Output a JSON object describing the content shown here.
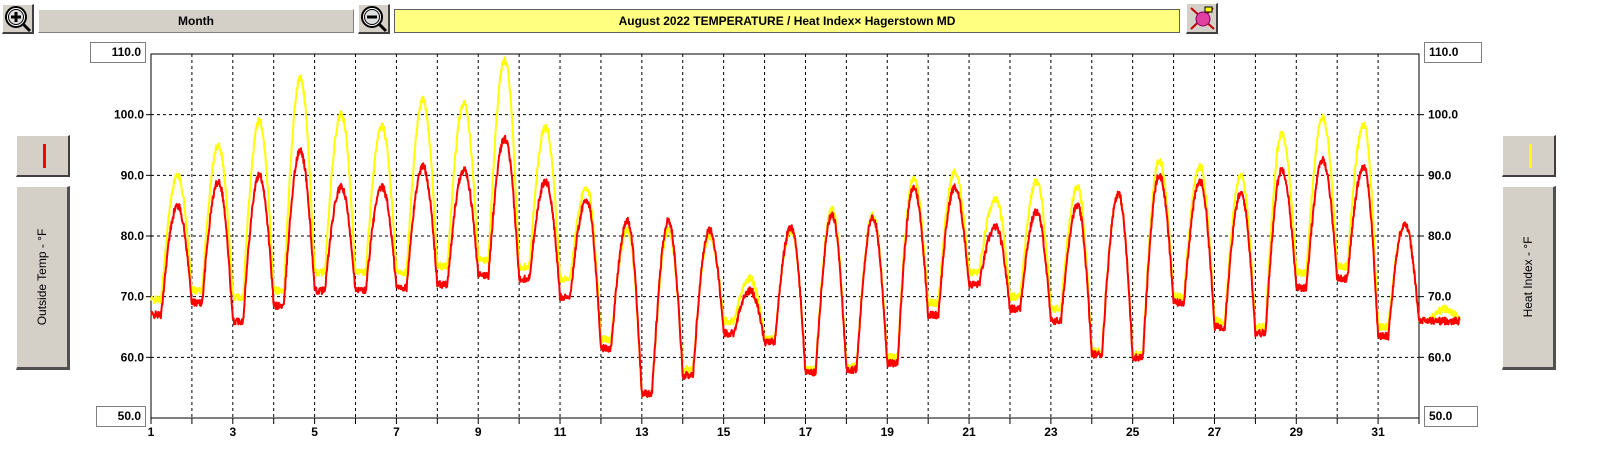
{
  "toolbar": {
    "zoom_in_icon": "zoom-in-magnifier-icon",
    "zoom_out_icon": "zoom-out-magnifier-icon",
    "period_label": "Month",
    "palette_icon": "color-palette-icon"
  },
  "colors": {
    "temp": "#ff0000",
    "heat_index": "#ffff00",
    "title_bg": "#ffff80",
    "grid": "#000000"
  },
  "chart_data": {
    "type": "line",
    "title": "August 2022  TEMPERATURE / Heat Index×  Hagerstown MD",
    "left_axis_label": "Outside Temp - °F",
    "right_axis_label": "Heat Index - °F",
    "ylim": [
      50,
      110
    ],
    "xlim": [
      1,
      32
    ],
    "y_ticks": [
      "60.0",
      "70.0",
      "80.0",
      "90.0",
      "100.0"
    ],
    "y_max_label": "110.0",
    "y_min_label": "50.0",
    "x_ticks": [
      "1",
      "3",
      "5",
      "7",
      "9",
      "11",
      "13",
      "15",
      "17",
      "19",
      "21",
      "23",
      "25",
      "27",
      "29",
      "31"
    ],
    "grid": "dashed",
    "series": [
      {
        "key": "temp",
        "color": "#ff0000",
        "daily_min": [
          67,
          69,
          66,
          68.5,
          71,
          71,
          71.5,
          72,
          73.5,
          73,
          70,
          61.5,
          54,
          57,
          64,
          62.5,
          57.5,
          58,
          59,
          67,
          72,
          68,
          66,
          60.5,
          60,
          69,
          65,
          64,
          71.5,
          73,
          63.5,
          66
        ],
        "daily_max": [
          85,
          89,
          90,
          94,
          88,
          88,
          91.5,
          91,
          96,
          89,
          86,
          82.5,
          82.5,
          81,
          71,
          81.5,
          83.5,
          83,
          88,
          88,
          81.5,
          84,
          85,
          87,
          90,
          89,
          87,
          91,
          92.5,
          91.5,
          82,
          66
        ]
      },
      {
        "key": "heat_index",
        "color": "#ffff00",
        "daily_min": [
          69.5,
          71,
          70,
          71,
          74,
          74,
          74,
          75,
          76,
          75,
          73,
          63,
          54,
          58,
          66,
          63,
          58,
          58.5,
          60,
          69,
          74,
          70,
          68,
          61,
          60.5,
          70,
          66,
          65,
          74,
          75,
          65,
          66
        ],
        "daily_max": [
          90,
          95,
          99,
          106,
          100,
          98,
          102.5,
          102,
          109,
          98,
          88,
          81,
          81,
          80,
          73,
          81,
          84.5,
          83.5,
          89.5,
          90.5,
          86,
          89,
          88,
          87,
          92.5,
          91.5,
          90,
          97,
          99.5,
          98.5,
          82,
          68
        ]
      }
    ]
  }
}
